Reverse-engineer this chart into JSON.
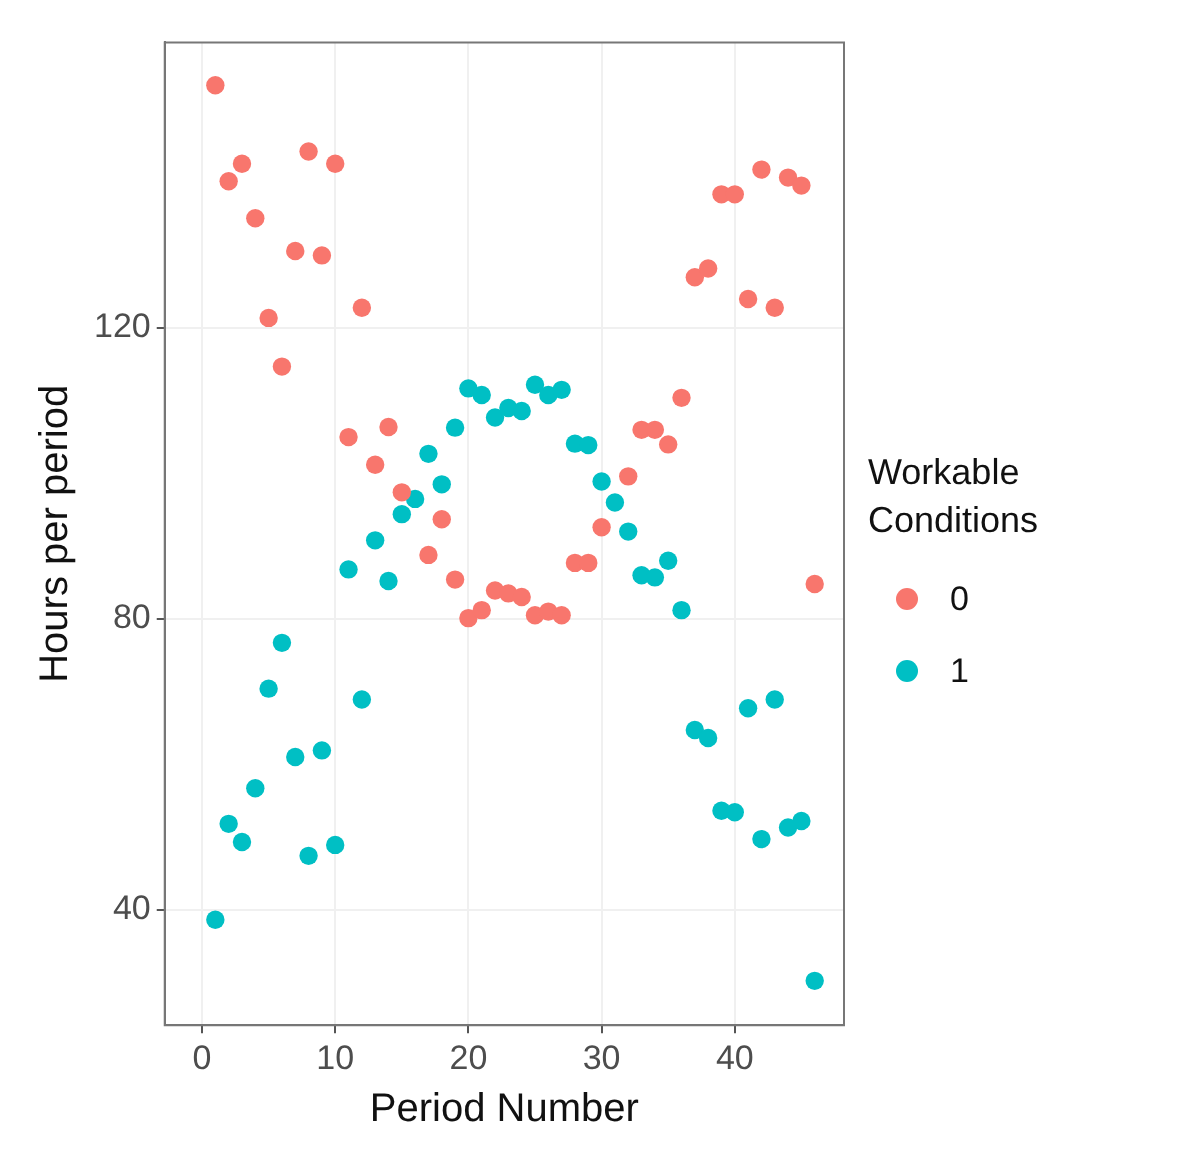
{
  "chart_data": {
    "type": "scatter",
    "xlabel": "Period Number",
    "ylabel": "Hours per period",
    "legend_title": "Workable Conditions",
    "legend": "right",
    "grid": true,
    "marker": "circle",
    "xlim": [
      -2.8,
      48.2
    ],
    "xticks": [
      0,
      10,
      20,
      30,
      40
    ],
    "ylim": [
      24.1,
      159.3
    ],
    "yticks": [
      40,
      80,
      120
    ],
    "series": [
      {
        "name": "0",
        "color": "#f8766d",
        "x": [
          1,
          2,
          3,
          4,
          5,
          6,
          7,
          8,
          9,
          10,
          11,
          12,
          13,
          14,
          15,
          17,
          18,
          19,
          20,
          21,
          22,
          23,
          24,
          25,
          26,
          27,
          28,
          29,
          30,
          32,
          33,
          34,
          35,
          36,
          37,
          38,
          39,
          40,
          41,
          42,
          43,
          44,
          45,
          46
        ],
        "values": [
          153.4,
          140.2,
          142.6,
          135.1,
          121.4,
          114.7,
          130.6,
          144.3,
          130,
          142.6,
          105,
          122.8,
          101.2,
          106.4,
          97.4,
          88.8,
          93.7,
          85.4,
          80.1,
          81.2,
          83.9,
          83.5,
          83,
          80.5,
          81,
          80.5,
          87.7,
          87.7,
          92.6,
          99.6,
          106,
          106,
          104,
          110.4,
          127,
          128.2,
          138.4,
          138.4,
          124,
          141.8,
          122.8,
          140.7,
          139.6,
          84.8
        ]
      },
      {
        "name": "1",
        "color": "#00bfc4",
        "x": [
          1,
          2,
          3,
          4,
          5,
          6,
          7,
          8,
          9,
          10,
          11,
          12,
          13,
          14,
          15,
          16,
          17,
          18,
          19,
          20,
          21,
          22,
          23,
          24,
          25,
          26,
          27,
          28,
          29,
          30,
          31,
          32,
          33,
          34,
          35,
          36,
          37,
          38,
          39,
          40,
          41,
          42,
          43,
          44,
          45,
          46
        ],
        "values": [
          38.6,
          51.8,
          49.3,
          56.7,
          70.4,
          76.7,
          61,
          47.4,
          61.9,
          48.9,
          86.8,
          68.9,
          90.8,
          85.2,
          94.4,
          96.5,
          102.7,
          98.5,
          106.3,
          111.7,
          110.8,
          107.7,
          109,
          108.6,
          112.2,
          110.8,
          111.5,
          104.1,
          103.9,
          98.9,
          96,
          92,
          86,
          85.7,
          88,
          81.2,
          64.7,
          63.6,
          53.6,
          53.4,
          67.7,
          49.7,
          68.9,
          51.3,
          52.2,
          30.2
        ]
      }
    ]
  }
}
